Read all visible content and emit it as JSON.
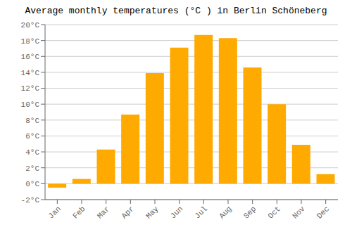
{
  "chart_data": {
    "type": "bar",
    "title": "Average monthly temperatures (°C ) in Berlin Schöneberg",
    "categories": [
      "Jan",
      "Feb",
      "Mar",
      "Apr",
      "May",
      "Jun",
      "Jul",
      "Aug",
      "Sep",
      "Oct",
      "Nov",
      "Dec"
    ],
    "values": [
      -0.5,
      0.6,
      4.3,
      8.7,
      13.9,
      17.1,
      18.7,
      18.3,
      14.6,
      10.0,
      4.9,
      1.2
    ],
    "color": "#FFAA00",
    "ylim": [
      -2,
      20
    ],
    "yticks": [
      {
        "value": -2,
        "label": "-2°C"
      },
      {
        "value": 0,
        "label": "0°C"
      },
      {
        "value": 2,
        "label": "2°C"
      },
      {
        "value": 4,
        "label": "4°C"
      },
      {
        "value": 6,
        "label": "6°C"
      },
      {
        "value": 8,
        "label": "8°C"
      },
      {
        "value": 10,
        "label": "10°C"
      },
      {
        "value": 12,
        "label": "12°C"
      },
      {
        "value": 14,
        "label": "14°C"
      },
      {
        "value": 16,
        "label": "16°C"
      },
      {
        "value": 18,
        "label": "18°C"
      },
      {
        "value": 20,
        "label": "20°C"
      }
    ],
    "grid": true
  }
}
